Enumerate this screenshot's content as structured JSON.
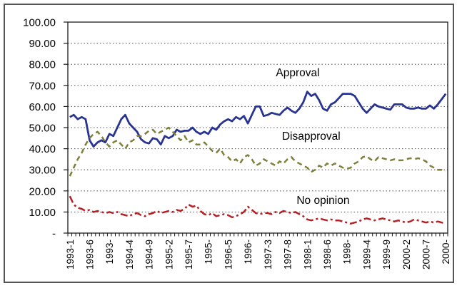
{
  "window": {
    "background": "#ffffff",
    "frame_color": "#545456"
  },
  "chart_data": {
    "type": "line",
    "title": "",
    "xlabel": "",
    "ylabel": "",
    "grid": "horizontal-dotted",
    "grid_color": "#5f5f5f",
    "axis_color": "#1a1a1a",
    "text_color": "#000000",
    "ylim": [
      0,
      100
    ],
    "x_count": 96,
    "y_ticks": [
      {
        "label": "100.00",
        "value": 100
      },
      {
        "label": "90.00",
        "value": 90
      },
      {
        "label": "80.00",
        "value": 80
      },
      {
        "label": "70.00",
        "value": 70
      },
      {
        "label": "60.00",
        "value": 60
      },
      {
        "label": "50.00",
        "value": 50
      },
      {
        "label": "40.00",
        "value": 40
      },
      {
        "label": "30.00",
        "value": 30
      },
      {
        "label": "20.00",
        "value": 20
      },
      {
        "label": "10.00",
        "value": 10
      },
      {
        "label": "-",
        "value": 0
      }
    ],
    "x_ticks": [
      {
        "label": "1993-1",
        "index": 0
      },
      {
        "label": "1993-6",
        "index": 5
      },
      {
        "label": "1993-",
        "index": 10
      },
      {
        "label": "1994-4",
        "index": 15
      },
      {
        "label": "1994-9",
        "index": 20
      },
      {
        "label": "1995-2",
        "index": 25
      },
      {
        "label": "1995-7",
        "index": 30
      },
      {
        "label": "1995-",
        "index": 35
      },
      {
        "label": "1996-5",
        "index": 40
      },
      {
        "label": "1996-",
        "index": 45
      },
      {
        "label": "1997-3",
        "index": 50
      },
      {
        "label": "1997-8",
        "index": 55
      },
      {
        "label": "1998-1",
        "index": 60
      },
      {
        "label": "1998-6",
        "index": 65
      },
      {
        "label": "1998-",
        "index": 70
      },
      {
        "label": "1999-4",
        "index": 75
      },
      {
        "label": "1999-9",
        "index": 80
      },
      {
        "label": "2000-2",
        "index": 85
      },
      {
        "label": "2000-7",
        "index": 90
      },
      {
        "label": "2000-",
        "index": 95
      }
    ],
    "series": [
      {
        "name": "Approval",
        "color": "#293390",
        "style": "solid",
        "width": 2.8,
        "values": [
          55,
          56,
          54,
          55,
          54,
          44,
          41,
          43,
          44,
          43,
          47,
          46,
          50,
          54,
          56,
          52,
          50,
          48,
          44.5,
          43,
          42.5,
          45,
          44.5,
          42,
          46,
          45,
          46,
          49,
          48,
          48.5,
          48.5,
          50,
          48,
          47,
          48,
          47,
          50,
          49,
          51.5,
          53,
          54,
          53,
          55,
          54,
          55.5,
          52,
          56,
          60,
          60,
          55.5,
          56,
          57,
          56.5,
          56,
          58,
          59.5,
          58,
          57,
          59,
          62,
          67,
          65,
          66,
          63,
          59,
          58,
          61,
          62,
          64,
          66,
          66,
          66,
          65,
          62,
          59,
          57,
          59,
          61,
          60,
          59.5,
          59,
          58.5,
          61,
          61,
          61,
          59.5,
          59,
          59,
          59.5,
          59,
          59,
          60.5,
          59,
          61,
          63.5,
          66
        ]
      },
      {
        "name": "Disapproval",
        "color": "#7E7F38",
        "style": "dashed",
        "width": 2.5,
        "values": [
          27,
          31,
          35,
          38,
          42,
          45,
          47,
          48,
          46,
          43,
          41,
          43,
          44,
          42,
          40,
          43,
          44,
          46,
          46,
          47,
          48.5,
          49,
          47,
          48,
          49,
          50,
          48,
          46,
          44,
          46,
          43,
          44,
          42,
          42,
          43,
          41,
          39,
          38,
          40,
          37,
          36,
          34,
          35,
          33,
          36,
          37,
          35,
          32,
          33,
          35,
          34,
          33,
          32,
          34,
          33,
          35,
          36,
          34,
          33,
          32,
          31,
          29,
          30,
          32,
          31,
          33,
          32,
          33,
          32,
          31,
          30.5,
          31,
          33,
          34,
          36,
          36.5,
          35,
          34,
          36,
          35.5,
          35,
          34.5,
          35,
          34.5,
          34.5,
          35,
          35.5,
          35,
          35.5,
          35,
          34,
          32,
          31,
          30,
          30,
          29.5
        ]
      },
      {
        "name": "No opinion",
        "color": "#B32024",
        "style": "dashdot",
        "width": 2.5,
        "values": [
          17.5,
          13.5,
          12,
          11.5,
          10.5,
          11,
          10,
          10.5,
          10,
          9.5,
          10,
          9.5,
          10,
          9,
          8.5,
          8,
          9,
          9.5,
          8.5,
          8,
          9,
          9.5,
          10.5,
          9.5,
          10,
          10.5,
          10,
          11,
          10.5,
          11.5,
          13.5,
          12.5,
          13,
          10.5,
          9,
          8.5,
          9.5,
          8,
          8.5,
          9,
          8.5,
          7.5,
          8,
          9,
          10,
          12.5,
          11,
          9.5,
          9,
          9.5,
          9.5,
          9,
          10,
          9.5,
          10.5,
          10,
          9.5,
          10,
          9,
          8,
          6.5,
          6,
          6.5,
          7,
          6.5,
          6,
          6.5,
          6,
          6,
          5.5,
          5,
          4.5,
          5,
          5.5,
          6.5,
          7,
          6.5,
          6,
          6.5,
          7,
          6.5,
          6,
          5.5,
          6,
          5.5,
          5,
          5.5,
          6.5,
          6,
          5.5,
          5,
          5.5,
          5,
          5.5,
          5,
          4.5
        ]
      }
    ],
    "annotations": [
      {
        "text": "Approval",
        "x_month": 57.6,
        "y_value": 76
      },
      {
        "text": "Disapproval",
        "x_month": 61,
        "y_value": 46
      },
      {
        "text": "No opinion",
        "x_month": 64,
        "y_value": 15.5
      }
    ]
  }
}
